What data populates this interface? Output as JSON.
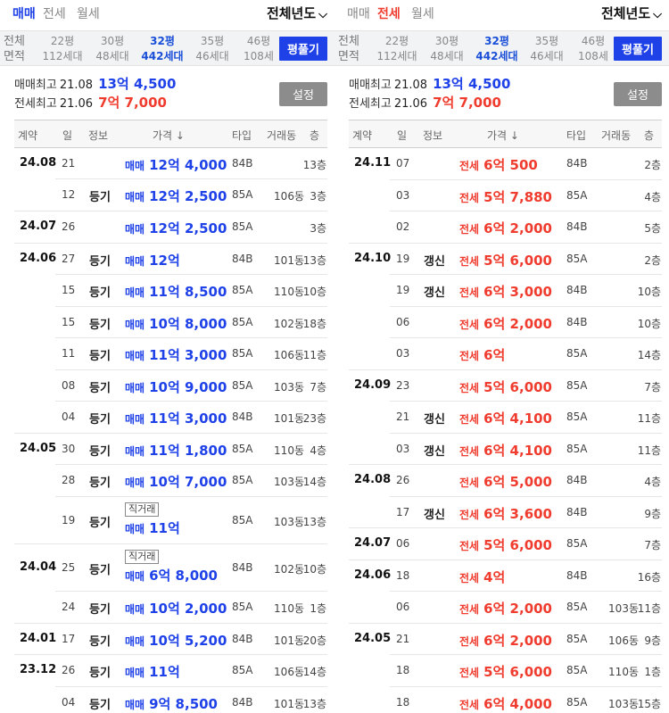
{
  "left": {
    "tabs": [
      {
        "label": "매매",
        "active": true,
        "color": "#1e41e8"
      },
      {
        "label": "전세",
        "active": false,
        "color": "#888888"
      },
      {
        "label": "월세",
        "active": false,
        "color": "#888888"
      }
    ],
    "year_filter": {
      "label": "전체년도",
      "icon": "chevron-down-icon"
    },
    "area_head": [
      "전체",
      "면적"
    ],
    "areas": [
      {
        "pyeong": "22평",
        "households": "112세대",
        "active": false
      },
      {
        "pyeong": "30평",
        "households": "48세대",
        "active": false
      },
      {
        "pyeong": "32평",
        "households": "442세대",
        "active": true
      },
      {
        "pyeong": "35평",
        "households": "46세대",
        "active": false
      },
      {
        "pyeong": "46평",
        "households": "108세",
        "active": false
      }
    ],
    "pyeong_button": "평풀기",
    "summary": {
      "sale_label": "매매최고",
      "sale_date": "21.08",
      "sale_price": "13억 4,500",
      "jeonse_label": "전세최고",
      "jeonse_date": "21.06",
      "jeonse_price": "7억 7,000"
    },
    "setting_button": "설정",
    "headers": [
      "계약",
      "일",
      "정보",
      "가격 ↓",
      "타입",
      "거래동",
      "층"
    ],
    "rows": [
      {
        "month": "24.08",
        "day": "21",
        "info": "",
        "kind": "매매",
        "price": "12억 4,000",
        "type": "84B",
        "dong": "",
        "floor": "13층",
        "direct": "",
        "h": 35,
        "groupEnd": false
      },
      {
        "month": "",
        "day": "12",
        "info": "등기",
        "kind": "매매",
        "price": "12억 2,500",
        "type": "85A",
        "dong": "106동",
        "floor": "3층",
        "direct": "",
        "h": 36,
        "groupEnd": true
      },
      {
        "month": "24.07",
        "day": "26",
        "info": "",
        "kind": "매매",
        "price": "12억 2,500",
        "type": "85A",
        "dong": "",
        "floor": "3층",
        "direct": "",
        "h": 36,
        "groupEnd": true
      },
      {
        "month": "24.06",
        "day": "27",
        "info": "등기",
        "kind": "매매",
        "price": "12억",
        "type": "84B",
        "dong": "101동",
        "floor": "13층",
        "direct": "",
        "h": 35,
        "groupEnd": false
      },
      {
        "month": "",
        "day": "15",
        "info": "등기",
        "kind": "매매",
        "price": "11억 8,500",
        "type": "85A",
        "dong": "110동",
        "floor": "10층",
        "direct": "",
        "h": 36,
        "groupEnd": false
      },
      {
        "month": "",
        "day": "15",
        "info": "등기",
        "kind": "매매",
        "price": "10억 8,000",
        "type": "85A",
        "dong": "102동",
        "floor": "18층",
        "direct": "",
        "h": 35,
        "groupEnd": false
      },
      {
        "month": "",
        "day": "11",
        "info": "등기",
        "kind": "매매",
        "price": "11억 3,000",
        "type": "85A",
        "dong": "106동",
        "floor": "11층",
        "direct": "",
        "h": 36,
        "groupEnd": false
      },
      {
        "month": "",
        "day": "08",
        "info": "등기",
        "kind": "매매",
        "price": "10억 9,000",
        "type": "85A",
        "dong": "103동",
        "floor": "7층",
        "direct": "",
        "h": 35,
        "groupEnd": false
      },
      {
        "month": "",
        "day": "04",
        "info": "등기",
        "kind": "매매",
        "price": "11억 3,000",
        "type": "84B",
        "dong": "101동",
        "floor": "23층",
        "direct": "",
        "h": 36,
        "groupEnd": true
      },
      {
        "month": "24.05",
        "day": "30",
        "info": "등기",
        "kind": "매매",
        "price": "11억 1,800",
        "type": "85A",
        "dong": "110동",
        "floor": "4층",
        "direct": "",
        "h": 35,
        "groupEnd": false
      },
      {
        "month": "",
        "day": "28",
        "info": "등기",
        "kind": "매매",
        "price": "10억 7,000",
        "type": "85A",
        "dong": "103동",
        "floor": "14층",
        "direct": "",
        "h": 36,
        "groupEnd": false
      },
      {
        "month": "",
        "day": "19",
        "info": "등기",
        "kind": "매매",
        "price": "11억",
        "type": "85A",
        "dong": "103동",
        "floor": "13층",
        "direct": "직거래",
        "h": 53,
        "groupEnd": true
      },
      {
        "month": "24.04",
        "day": "25",
        "info": "등기",
        "kind": "매매",
        "price": "6억 8,000",
        "type": "84B",
        "dong": "102동",
        "floor": "10층",
        "direct": "직거래",
        "h": 53,
        "groupEnd": false
      },
      {
        "month": "",
        "day": "24",
        "info": "등기",
        "kind": "매매",
        "price": "10억 2,000",
        "type": "85A",
        "dong": "110동",
        "floor": "1층",
        "direct": "",
        "h": 36,
        "groupEnd": true
      },
      {
        "month": "24.01",
        "day": "17",
        "info": "등기",
        "kind": "매매",
        "price": "10억 5,200",
        "type": "84B",
        "dong": "101동",
        "floor": "20층",
        "direct": "",
        "h": 35,
        "groupEnd": true
      },
      {
        "month": "23.12",
        "day": "26",
        "info": "등기",
        "kind": "매매",
        "price": "11억",
        "type": "85A",
        "dong": "106동",
        "floor": "14층",
        "direct": "",
        "h": 36,
        "groupEnd": false
      },
      {
        "month": "",
        "day": "04",
        "info": "등기",
        "kind": "매매",
        "price": "9억 8,500",
        "type": "84B",
        "dong": "101동",
        "floor": "13층",
        "direct": "",
        "h": 35,
        "groupEnd": false
      }
    ]
  },
  "right": {
    "tabs": [
      {
        "label": "매매",
        "active": false,
        "color": "#888888"
      },
      {
        "label": "전세",
        "active": true,
        "color": "#f03c2e"
      },
      {
        "label": "월세",
        "active": false,
        "color": "#888888"
      }
    ],
    "year_filter": {
      "label": "전체년도",
      "icon": "chevron-down-icon"
    },
    "area_head": [
      "전체",
      "면적"
    ],
    "areas": [
      {
        "pyeong": "22평",
        "households": "112세대",
        "active": false
      },
      {
        "pyeong": "30평",
        "households": "48세대",
        "active": false
      },
      {
        "pyeong": "32평",
        "households": "442세대",
        "active": true
      },
      {
        "pyeong": "35평",
        "households": "46세대",
        "active": false
      },
      {
        "pyeong": "46평",
        "households": "108세",
        "active": false
      }
    ],
    "pyeong_button": "평풀기",
    "summary": {
      "sale_label": "매매최고",
      "sale_date": "21.08",
      "sale_price": "13억 4,500",
      "jeonse_label": "전세최고",
      "jeonse_date": "21.06",
      "jeonse_price": "7억 7,000"
    },
    "setting_button": "설정",
    "headers": [
      "계약",
      "일",
      "정보",
      "가격 ↓",
      "타입",
      "거래동",
      "층"
    ],
    "rows": [
      {
        "month": "24.11",
        "day": "07",
        "info": "",
        "kind": "전세",
        "price": "6억 500",
        "type": "84B",
        "dong": "",
        "floor": "2층",
        "direct": "",
        "h": 36,
        "groupEnd": false
      },
      {
        "month": "",
        "day": "03",
        "info": "",
        "kind": "전세",
        "price": "5억 7,880",
        "type": "85A",
        "dong": "",
        "floor": "4층",
        "direct": "",
        "h": 35,
        "groupEnd": false
      },
      {
        "month": "",
        "day": "02",
        "info": "",
        "kind": "전세",
        "price": "6억 2,000",
        "type": "84B",
        "dong": "",
        "floor": "5층",
        "direct": "",
        "h": 36,
        "groupEnd": true
      },
      {
        "month": "24.10",
        "day": "19",
        "info": "갱신",
        "kind": "전세",
        "price": "5억 6,000",
        "type": "85A",
        "dong": "",
        "floor": "2층",
        "direct": "",
        "h": 35,
        "groupEnd": false
      },
      {
        "month": "",
        "day": "19",
        "info": "갱신",
        "kind": "전세",
        "price": "6억 3,000",
        "type": "84B",
        "dong": "",
        "floor": "10층",
        "direct": "",
        "h": 36,
        "groupEnd": false
      },
      {
        "month": "",
        "day": "06",
        "info": "",
        "kind": "전세",
        "price": "6억 2,000",
        "type": "84B",
        "dong": "",
        "floor": "10층",
        "direct": "",
        "h": 35,
        "groupEnd": false
      },
      {
        "month": "",
        "day": "03",
        "info": "",
        "kind": "전세",
        "price": "6억",
        "type": "85A",
        "dong": "",
        "floor": "14층",
        "direct": "",
        "h": 36,
        "groupEnd": true
      },
      {
        "month": "24.09",
        "day": "23",
        "info": "",
        "kind": "전세",
        "price": "5억 6,000",
        "type": "85A",
        "dong": "",
        "floor": "7층",
        "direct": "",
        "h": 35,
        "groupEnd": false
      },
      {
        "month": "",
        "day": "21",
        "info": "갱신",
        "kind": "전세",
        "price": "6억 4,100",
        "type": "85A",
        "dong": "",
        "floor": "11층",
        "direct": "",
        "h": 36,
        "groupEnd": false
      },
      {
        "month": "",
        "day": "03",
        "info": "갱신",
        "kind": "전세",
        "price": "6억 4,100",
        "type": "85A",
        "dong": "",
        "floor": "11층",
        "direct": "",
        "h": 35,
        "groupEnd": true
      },
      {
        "month": "24.08",
        "day": "26",
        "info": "",
        "kind": "전세",
        "price": "6억 5,000",
        "type": "84B",
        "dong": "",
        "floor": "4층",
        "direct": "",
        "h": 36,
        "groupEnd": false
      },
      {
        "month": "",
        "day": "17",
        "info": "갱신",
        "kind": "전세",
        "price": "6억 3,600",
        "type": "84B",
        "dong": "",
        "floor": "9층",
        "direct": "",
        "h": 35,
        "groupEnd": true
      },
      {
        "month": "24.07",
        "day": "06",
        "info": "",
        "kind": "전세",
        "price": "5억 6,000",
        "type": "85A",
        "dong": "",
        "floor": "7층",
        "direct": "",
        "h": 36,
        "groupEnd": true
      },
      {
        "month": "24.06",
        "day": "18",
        "info": "",
        "kind": "전세",
        "price": "4억",
        "type": "84B",
        "dong": "",
        "floor": "16층",
        "direct": "",
        "h": 35,
        "groupEnd": false
      },
      {
        "month": "",
        "day": "06",
        "info": "",
        "kind": "전세",
        "price": "6억 2,000",
        "type": "85A",
        "dong": "103동",
        "floor": "11층",
        "direct": "",
        "h": 36,
        "groupEnd": true
      },
      {
        "month": "24.05",
        "day": "21",
        "info": "",
        "kind": "전세",
        "price": "6억 2,000",
        "type": "85A",
        "dong": "106동",
        "floor": "9층",
        "direct": "",
        "h": 35,
        "groupEnd": false
      },
      {
        "month": "",
        "day": "18",
        "info": "",
        "kind": "전세",
        "price": "5억 6,000",
        "type": "85A",
        "dong": "110동",
        "floor": "1층",
        "direct": "",
        "h": 36,
        "groupEnd": false
      },
      {
        "month": "",
        "day": "18",
        "info": "",
        "kind": "전세",
        "price": "6억 4,000",
        "type": "85A",
        "dong": "103동",
        "floor": "15층",
        "direct": "",
        "h": 35,
        "groupEnd": false
      }
    ]
  }
}
